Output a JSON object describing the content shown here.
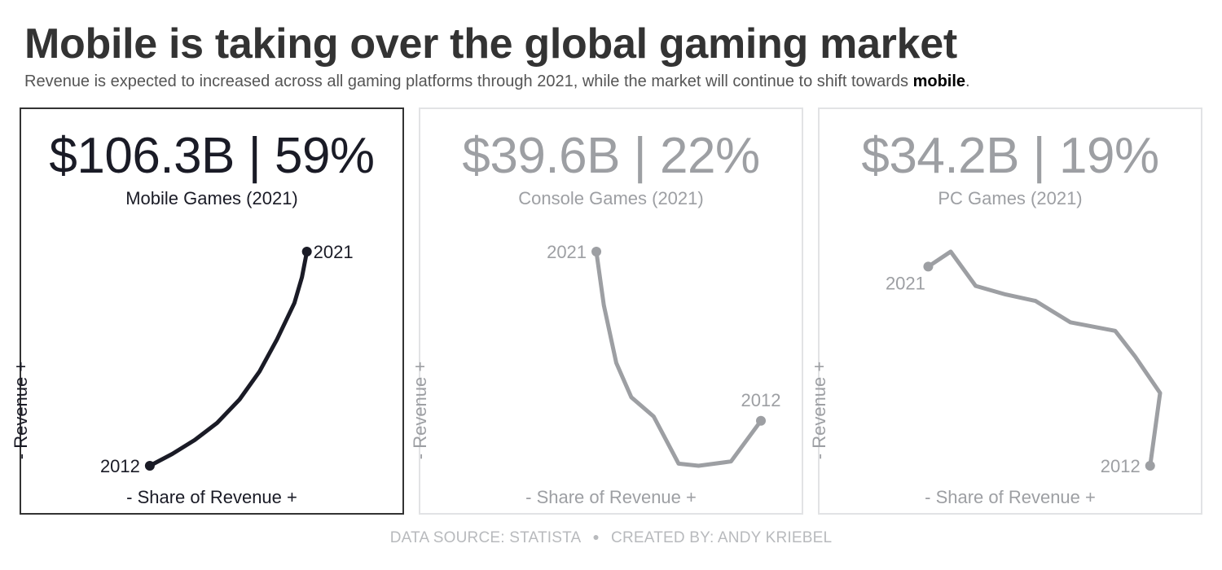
{
  "title": "Mobile is taking over the global gaming market",
  "subtitle": {
    "text": "Revenue is expected to increased across all gaming platforms through 2021, while the market will continue to shift towards ",
    "emphasis": "mobile",
    "end": "."
  },
  "colors": {
    "highlight": "#1a1b26",
    "muted": "#9d9fa3",
    "title": "#333333",
    "footer": "#b8babd"
  },
  "footer": {
    "source": "DATA SOURCE: STATISTA",
    "separator": "●",
    "credit": "CREATED BY: ANDY KRIEBEL"
  },
  "chart_data": [
    {
      "type": "line",
      "kpi": "$106.3B | 59%",
      "label": "Mobile Games (2021)",
      "xlabel": "-  Share of Revenue  +",
      "ylabel": "-  Revenue  +",
      "color": "#1a1b26",
      "highlight": true,
      "start_label": "2012",
      "end_label": "2021",
      "start_label_pos": "left",
      "end_label_pos": "right",
      "xlim": [
        0,
        1
      ],
      "ylim": [
        0,
        1
      ],
      "points": [
        [
          0.15,
          0.0
        ],
        [
          0.24,
          0.055
        ],
        [
          0.33,
          0.12
        ],
        [
          0.42,
          0.2
        ],
        [
          0.51,
          0.31
        ],
        [
          0.59,
          0.44
        ],
        [
          0.66,
          0.59
        ],
        [
          0.73,
          0.76
        ],
        [
          0.76,
          0.88
        ],
        [
          0.78,
          1.0
        ]
      ]
    },
    {
      "type": "line",
      "kpi": "$39.6B | 22%",
      "label": "Console Games (2021)",
      "xlabel": "-  Share of Revenue  +",
      "ylabel": "-  Revenue  +",
      "color": "#9d9fa3",
      "highlight": false,
      "start_label": "2012",
      "end_label": "2021",
      "start_label_pos": "above",
      "end_label_pos": "left",
      "xlim": [
        0,
        1
      ],
      "ylim": [
        0,
        1
      ],
      "points": [
        [
          1.0,
          0.21
        ],
        [
          0.88,
          0.02
        ],
        [
          0.75,
          0.0
        ],
        [
          0.67,
          0.01
        ],
        [
          0.57,
          0.23
        ],
        [
          0.48,
          0.32
        ],
        [
          0.42,
          0.48
        ],
        [
          0.37,
          0.75
        ],
        [
          0.34,
          1.0
        ]
      ]
    },
    {
      "type": "line",
      "kpi": "$34.2B | 19%",
      "label": "PC Games (2021)",
      "xlabel": "-  Share of Revenue  +",
      "ylabel": "-  Revenue  +",
      "color": "#9d9fa3",
      "highlight": false,
      "start_label": "2012",
      "end_label": "2021",
      "start_label_pos": "left",
      "end_label_pos": "below",
      "xlim": [
        0,
        1
      ],
      "ylim": [
        0,
        1
      ],
      "points": [
        [
          0.96,
          0.0
        ],
        [
          1.0,
          0.34
        ],
        [
          0.9,
          0.51
        ],
        [
          0.82,
          0.63
        ],
        [
          0.64,
          0.67
        ],
        [
          0.5,
          0.77
        ],
        [
          0.38,
          0.8
        ],
        [
          0.26,
          0.84
        ],
        [
          0.16,
          1.0
        ],
        [
          0.07,
          0.93
        ]
      ]
    }
  ]
}
